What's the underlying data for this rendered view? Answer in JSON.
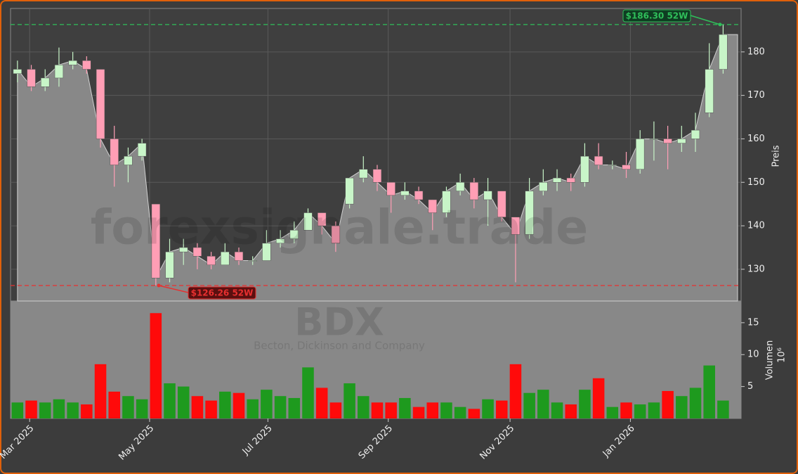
{
  "chart_data": [
    {
      "type": "candlestick",
      "watermark": "forexsignale.trade",
      "y_label": "Preis",
      "x": [
        0,
        1,
        2,
        3,
        4,
        5,
        6,
        7,
        8,
        9,
        10,
        11,
        12,
        13,
        14,
        15,
        16,
        17,
        18,
        19,
        20,
        21,
        22,
        23,
        24,
        25,
        26,
        27,
        28,
        29,
        30,
        31,
        32,
        33,
        34,
        35,
        36,
        37,
        38,
        39,
        40,
        41,
        42,
        43,
        44,
        45,
        46,
        47,
        48,
        49,
        50,
        51
      ],
      "open": [
        175,
        176,
        172,
        174,
        177,
        178,
        176,
        160,
        154,
        156,
        145,
        128,
        134,
        135,
        133,
        131,
        134,
        132,
        132,
        136,
        137,
        139,
        143,
        140,
        145,
        151,
        153,
        150,
        147,
        148,
        146,
        143,
        148,
        150,
        146,
        148,
        142,
        138,
        148,
        150,
        151,
        150,
        156,
        154,
        154,
        153,
        160,
        160,
        159,
        160,
        166,
        176
      ],
      "high": [
        178,
        177,
        176,
        181,
        180,
        179,
        176,
        163,
        158,
        160,
        145,
        137,
        137,
        136,
        134,
        136,
        135,
        133,
        139,
        139,
        141,
        144,
        143,
        141,
        151,
        156,
        154,
        150,
        150,
        149,
        146,
        149,
        152,
        151,
        151,
        148,
        142,
        151,
        153,
        153,
        152,
        159,
        159,
        155,
        157,
        162,
        164,
        163,
        163,
        166,
        182,
        186.3
      ],
      "low": [
        173,
        171,
        171,
        172,
        176,
        175,
        158,
        149,
        150,
        155,
        126.26,
        127,
        131,
        130,
        130,
        131,
        131,
        131,
        132,
        135,
        136,
        139,
        138,
        134,
        144,
        150,
        148,
        143,
        146,
        145,
        139,
        142,
        147,
        144,
        140,
        141,
        127,
        137,
        147,
        148,
        148,
        149,
        153,
        153,
        151,
        152,
        155,
        153,
        157,
        157,
        165,
        175
      ],
      "close": [
        176,
        172,
        174,
        177,
        178,
        176,
        160,
        154,
        156,
        159,
        128,
        134,
        135,
        133,
        131,
        134,
        132,
        132,
        136,
        137,
        139,
        143,
        140,
        136,
        151,
        153,
        150,
        147,
        148,
        146,
        143,
        148,
        150,
        146,
        148,
        142,
        138,
        148,
        150,
        151,
        150,
        156,
        154,
        154,
        153,
        160,
        160,
        159,
        160,
        162,
        176,
        184
      ],
      "up_color": "#c8f5c8",
      "down_color": "#ff9eb5",
      "area_color": "#888888",
      "xlim": [
        -0.5,
        52.3
      ],
      "ylim": [
        122.7,
        190
      ],
      "yticks": [
        130,
        140,
        150,
        160,
        170,
        180
      ],
      "grid": true,
      "annotations": [
        {
          "value": 186.3,
          "label": "$186.30 52W",
          "color": "#2fbf5a"
        },
        {
          "value": 126.26,
          "label": "$126.26 52W",
          "color": "#e83030"
        }
      ]
    },
    {
      "type": "bar",
      "title": "BDX",
      "subtitle": "Becton, Dickinson and Company",
      "y_label": "Volumen",
      "y_unit": "10⁶",
      "values": [
        2.5,
        2.8,
        2.5,
        3,
        2.5,
        2.2,
        8.5,
        4.2,
        3.5,
        3,
        16.5,
        5.5,
        5,
        3.5,
        2.8,
        4.2,
        4,
        3,
        4.5,
        3.5,
        3.2,
        8,
        4.8,
        2.5,
        5.5,
        3.5,
        2.5,
        2.5,
        3.2,
        1.8,
        2.5,
        2.5,
        1.8,
        1.5,
        3,
        2.8,
        8.5,
        4,
        4.5,
        2.5,
        2.2,
        4.5,
        6.3,
        1.8,
        2.5,
        2.2,
        2.5,
        4.3,
        3.5,
        4.8,
        8.3,
        2.8
      ],
      "up_color": "#1e9a1e",
      "down_color": "#ff0a0a",
      "ylim": [
        0,
        18.4
      ],
      "yticks": [
        5,
        10,
        15
      ],
      "xticks": [
        {
          "value": 0.88,
          "label": "Mar 2025"
        },
        {
          "value": 9.55,
          "label": "May 2025"
        },
        {
          "value": 18.1,
          "label": "Jul 2025"
        },
        {
          "value": 26.8,
          "label": "Sep 2025"
        },
        {
          "value": 35.6,
          "label": "Nov 2025"
        },
        {
          "value": 44.3,
          "label": "Jan 2026"
        }
      ]
    }
  ]
}
